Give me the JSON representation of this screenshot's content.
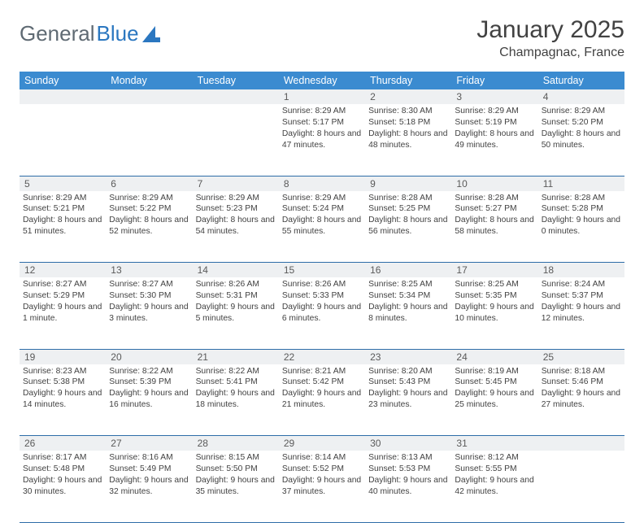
{
  "header": {
    "logo_part1": "General",
    "logo_part2": "Blue",
    "month_title": "January 2025",
    "location": "Champagnac, France"
  },
  "colors": {
    "header_bg": "#3b8bd0",
    "header_text": "#ffffff",
    "daynum_bg": "#eef0f2",
    "row_border": "#2e6da8",
    "body_text": "#424242",
    "logo_gray": "#5f6a73",
    "logo_blue": "#2b77c0"
  },
  "weekdays": [
    "Sunday",
    "Monday",
    "Tuesday",
    "Wednesday",
    "Thursday",
    "Friday",
    "Saturday"
  ],
  "weeks": [
    [
      {
        "n": "",
        "sr": "",
        "ss": "",
        "dl": ""
      },
      {
        "n": "",
        "sr": "",
        "ss": "",
        "dl": ""
      },
      {
        "n": "",
        "sr": "",
        "ss": "",
        "dl": ""
      },
      {
        "n": "1",
        "sr": "Sunrise: 8:29 AM",
        "ss": "Sunset: 5:17 PM",
        "dl": "Daylight: 8 hours and 47 minutes."
      },
      {
        "n": "2",
        "sr": "Sunrise: 8:30 AM",
        "ss": "Sunset: 5:18 PM",
        "dl": "Daylight: 8 hours and 48 minutes."
      },
      {
        "n": "3",
        "sr": "Sunrise: 8:29 AM",
        "ss": "Sunset: 5:19 PM",
        "dl": "Daylight: 8 hours and 49 minutes."
      },
      {
        "n": "4",
        "sr": "Sunrise: 8:29 AM",
        "ss": "Sunset: 5:20 PM",
        "dl": "Daylight: 8 hours and 50 minutes."
      }
    ],
    [
      {
        "n": "5",
        "sr": "Sunrise: 8:29 AM",
        "ss": "Sunset: 5:21 PM",
        "dl": "Daylight: 8 hours and 51 minutes."
      },
      {
        "n": "6",
        "sr": "Sunrise: 8:29 AM",
        "ss": "Sunset: 5:22 PM",
        "dl": "Daylight: 8 hours and 52 minutes."
      },
      {
        "n": "7",
        "sr": "Sunrise: 8:29 AM",
        "ss": "Sunset: 5:23 PM",
        "dl": "Daylight: 8 hours and 54 minutes."
      },
      {
        "n": "8",
        "sr": "Sunrise: 8:29 AM",
        "ss": "Sunset: 5:24 PM",
        "dl": "Daylight: 8 hours and 55 minutes."
      },
      {
        "n": "9",
        "sr": "Sunrise: 8:28 AM",
        "ss": "Sunset: 5:25 PM",
        "dl": "Daylight: 8 hours and 56 minutes."
      },
      {
        "n": "10",
        "sr": "Sunrise: 8:28 AM",
        "ss": "Sunset: 5:27 PM",
        "dl": "Daylight: 8 hours and 58 minutes."
      },
      {
        "n": "11",
        "sr": "Sunrise: 8:28 AM",
        "ss": "Sunset: 5:28 PM",
        "dl": "Daylight: 9 hours and 0 minutes."
      }
    ],
    [
      {
        "n": "12",
        "sr": "Sunrise: 8:27 AM",
        "ss": "Sunset: 5:29 PM",
        "dl": "Daylight: 9 hours and 1 minute."
      },
      {
        "n": "13",
        "sr": "Sunrise: 8:27 AM",
        "ss": "Sunset: 5:30 PM",
        "dl": "Daylight: 9 hours and 3 minutes."
      },
      {
        "n": "14",
        "sr": "Sunrise: 8:26 AM",
        "ss": "Sunset: 5:31 PM",
        "dl": "Daylight: 9 hours and 5 minutes."
      },
      {
        "n": "15",
        "sr": "Sunrise: 8:26 AM",
        "ss": "Sunset: 5:33 PM",
        "dl": "Daylight: 9 hours and 6 minutes."
      },
      {
        "n": "16",
        "sr": "Sunrise: 8:25 AM",
        "ss": "Sunset: 5:34 PM",
        "dl": "Daylight: 9 hours and 8 minutes."
      },
      {
        "n": "17",
        "sr": "Sunrise: 8:25 AM",
        "ss": "Sunset: 5:35 PM",
        "dl": "Daylight: 9 hours and 10 minutes."
      },
      {
        "n": "18",
        "sr": "Sunrise: 8:24 AM",
        "ss": "Sunset: 5:37 PM",
        "dl": "Daylight: 9 hours and 12 minutes."
      }
    ],
    [
      {
        "n": "19",
        "sr": "Sunrise: 8:23 AM",
        "ss": "Sunset: 5:38 PM",
        "dl": "Daylight: 9 hours and 14 minutes."
      },
      {
        "n": "20",
        "sr": "Sunrise: 8:22 AM",
        "ss": "Sunset: 5:39 PM",
        "dl": "Daylight: 9 hours and 16 minutes."
      },
      {
        "n": "21",
        "sr": "Sunrise: 8:22 AM",
        "ss": "Sunset: 5:41 PM",
        "dl": "Daylight: 9 hours and 18 minutes."
      },
      {
        "n": "22",
        "sr": "Sunrise: 8:21 AM",
        "ss": "Sunset: 5:42 PM",
        "dl": "Daylight: 9 hours and 21 minutes."
      },
      {
        "n": "23",
        "sr": "Sunrise: 8:20 AM",
        "ss": "Sunset: 5:43 PM",
        "dl": "Daylight: 9 hours and 23 minutes."
      },
      {
        "n": "24",
        "sr": "Sunrise: 8:19 AM",
        "ss": "Sunset: 5:45 PM",
        "dl": "Daylight: 9 hours and 25 minutes."
      },
      {
        "n": "25",
        "sr": "Sunrise: 8:18 AM",
        "ss": "Sunset: 5:46 PM",
        "dl": "Daylight: 9 hours and 27 minutes."
      }
    ],
    [
      {
        "n": "26",
        "sr": "Sunrise: 8:17 AM",
        "ss": "Sunset: 5:48 PM",
        "dl": "Daylight: 9 hours and 30 minutes."
      },
      {
        "n": "27",
        "sr": "Sunrise: 8:16 AM",
        "ss": "Sunset: 5:49 PM",
        "dl": "Daylight: 9 hours and 32 minutes."
      },
      {
        "n": "28",
        "sr": "Sunrise: 8:15 AM",
        "ss": "Sunset: 5:50 PM",
        "dl": "Daylight: 9 hours and 35 minutes."
      },
      {
        "n": "29",
        "sr": "Sunrise: 8:14 AM",
        "ss": "Sunset: 5:52 PM",
        "dl": "Daylight: 9 hours and 37 minutes."
      },
      {
        "n": "30",
        "sr": "Sunrise: 8:13 AM",
        "ss": "Sunset: 5:53 PM",
        "dl": "Daylight: 9 hours and 40 minutes."
      },
      {
        "n": "31",
        "sr": "Sunrise: 8:12 AM",
        "ss": "Sunset: 5:55 PM",
        "dl": "Daylight: 9 hours and 42 minutes."
      },
      {
        "n": "",
        "sr": "",
        "ss": "",
        "dl": ""
      }
    ]
  ]
}
